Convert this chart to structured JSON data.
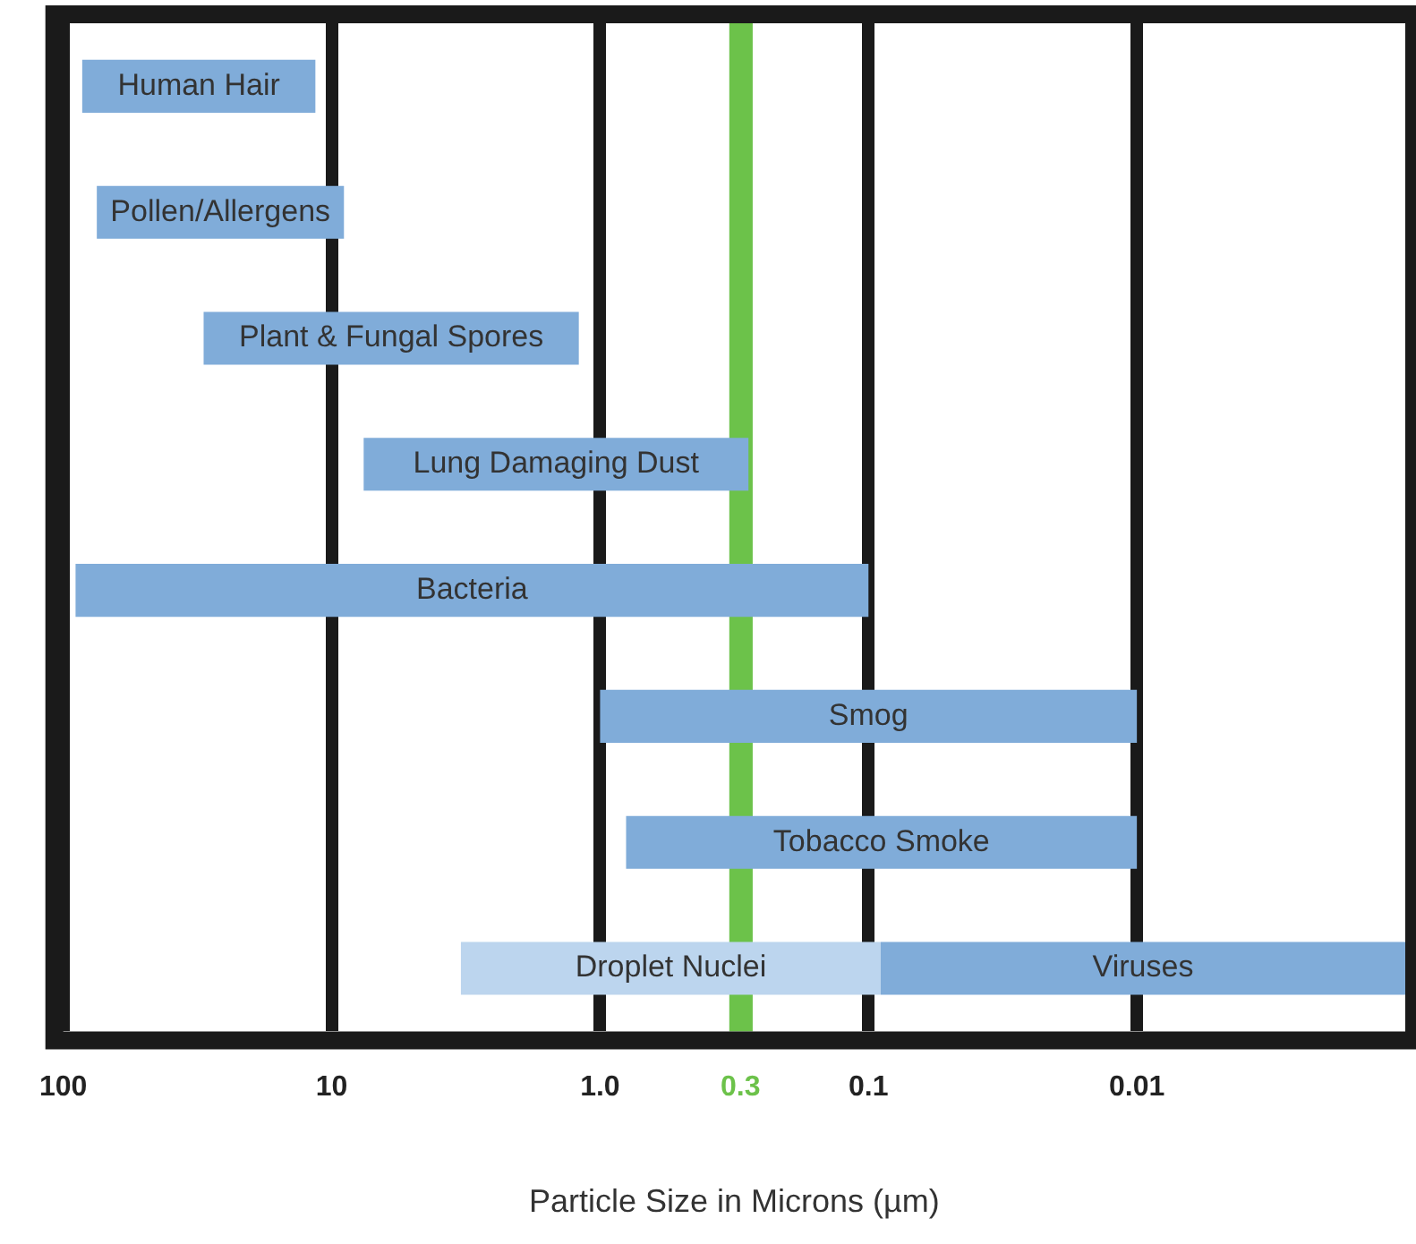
{
  "chart_data": {
    "type": "bar",
    "orientation": "horizontal",
    "xlabel": "Particle Size in Microns (µm)",
    "categories": [
      "Human Hair",
      "Pollen/Allergens",
      "Plant & Fungal Spores",
      "Lung Damaging Dust",
      "Bacteria",
      "Smog",
      "Tobacco Smoke",
      null
    ],
    "series": [
      {
        "color": "#80acd9",
        "base": [
          11.5,
          9,
          1.2,
          0.28,
          0.1,
          0.01,
          0.01,
          null
        ],
        "values": [
          73.5,
          66,
          28.8,
          7.32,
          89.9,
          0.99,
          0.79,
          null
        ]
      },
      {
        "name": "Droplet Nuclei",
        "color": "#bcd5ee",
        "base": [
          null,
          null,
          null,
          null,
          null,
          null,
          null,
          0.09
        ],
        "values": [
          null,
          null,
          null,
          null,
          null,
          null,
          null,
          3.21
        ]
      },
      {
        "name": "Viruses",
        "color": "#80acd9",
        "base": [
          null,
          null,
          null,
          null,
          null,
          null,
          null,
          0.001
        ],
        "values": [
          null,
          null,
          null,
          null,
          null,
          null,
          null,
          0.089
        ]
      }
    ],
    "log": "x",
    "xlim": [
      100,
      0.001
    ],
    "xticks": [
      {
        "value": 100,
        "label": "100"
      },
      10,
      {
        "value": 1,
        "label": "1.0"
      },
      0.3,
      0.1,
      0.01
    ],
    "bands": [
      {
        "axis": "x",
        "from": 0.27,
        "to": 0.33,
        "color": "#6cc24a"
      }
    ],
    "grid": "x",
    "legend": false,
    "tick_labels": "x"
  }
}
